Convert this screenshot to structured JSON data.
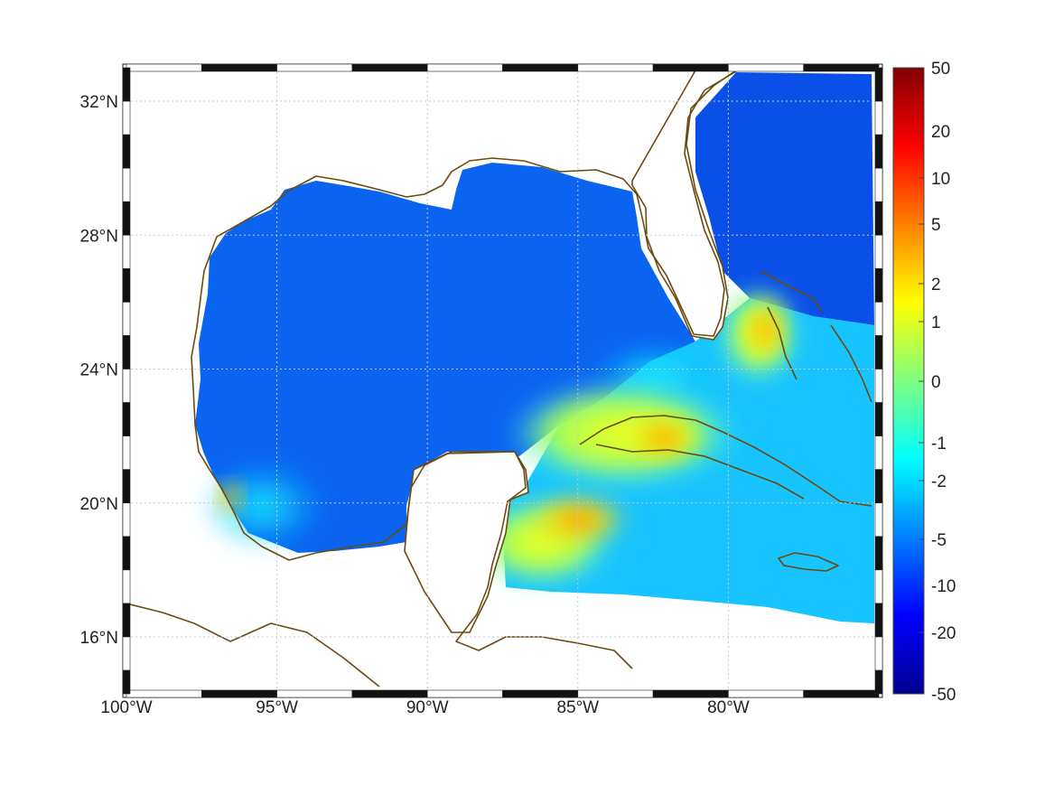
{
  "map": {
    "x_ticks": [
      {
        "value": -100,
        "label": "100°W"
      },
      {
        "value": -95,
        "label": "95°W"
      },
      {
        "value": -90,
        "label": "90°W"
      },
      {
        "value": -85,
        "label": "85°W"
      },
      {
        "value": -80,
        "label": "80°W"
      }
    ],
    "y_ticks": [
      {
        "value": 32,
        "label": "32°N"
      },
      {
        "value": 28,
        "label": "28°N"
      },
      {
        "value": 24,
        "label": "24°N"
      },
      {
        "value": 20,
        "label": "20°N"
      },
      {
        "value": 16,
        "label": "16°N"
      }
    ],
    "lon_range": [
      -100,
      -75
    ],
    "lat_range": [
      14.3,
      33
    ],
    "grid": true,
    "coastline_color": "#6b4a10"
  },
  "colorbar": {
    "colormap": "jet",
    "scale": "nonlinear",
    "ticks": [
      {
        "value": 50,
        "label": "50"
      },
      {
        "value": 20,
        "label": "20"
      },
      {
        "value": 10,
        "label": "10"
      },
      {
        "value": 5,
        "label": "5"
      },
      {
        "value": 2,
        "label": "2"
      },
      {
        "value": 1,
        "label": "1"
      },
      {
        "value": 0,
        "label": "0"
      },
      {
        "value": -1,
        "label": "-1"
      },
      {
        "value": -2,
        "label": "-2"
      },
      {
        "value": -5,
        "label": "-5"
      },
      {
        "value": -10,
        "label": "-10"
      },
      {
        "value": -20,
        "label": "-20"
      },
      {
        "value": -50,
        "label": "-50"
      }
    ]
  }
}
